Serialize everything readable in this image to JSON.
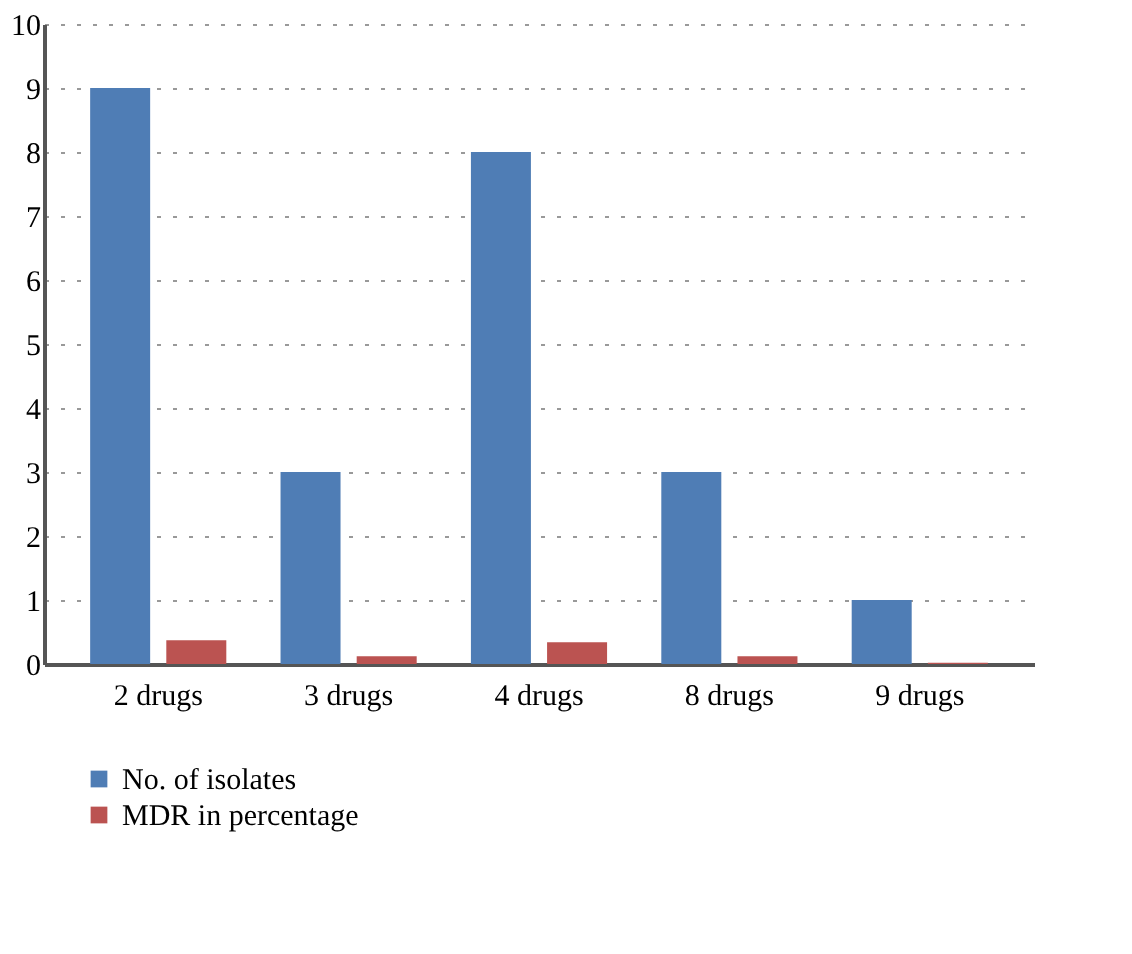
{
  "chart_data": {
    "type": "bar",
    "categories": [
      "2 drugs",
      "3 drugs",
      "4 drugs",
      "8 drugs",
      "9 drugs"
    ],
    "series": [
      {
        "name": "No. of isolates",
        "color": "#4f7db5",
        "values": [
          9,
          3,
          8,
          3,
          1
        ]
      },
      {
        "name": "MDR in percentage",
        "color": "#bb5351",
        "values": [
          0.37,
          0.12,
          0.34,
          0.12,
          0.02
        ]
      }
    ],
    "ylim": [
      0,
      10
    ],
    "yticks": [
      0,
      1,
      2,
      3,
      4,
      5,
      6,
      7,
      8,
      9,
      10
    ],
    "grid": "y",
    "legend": "bottom left"
  }
}
